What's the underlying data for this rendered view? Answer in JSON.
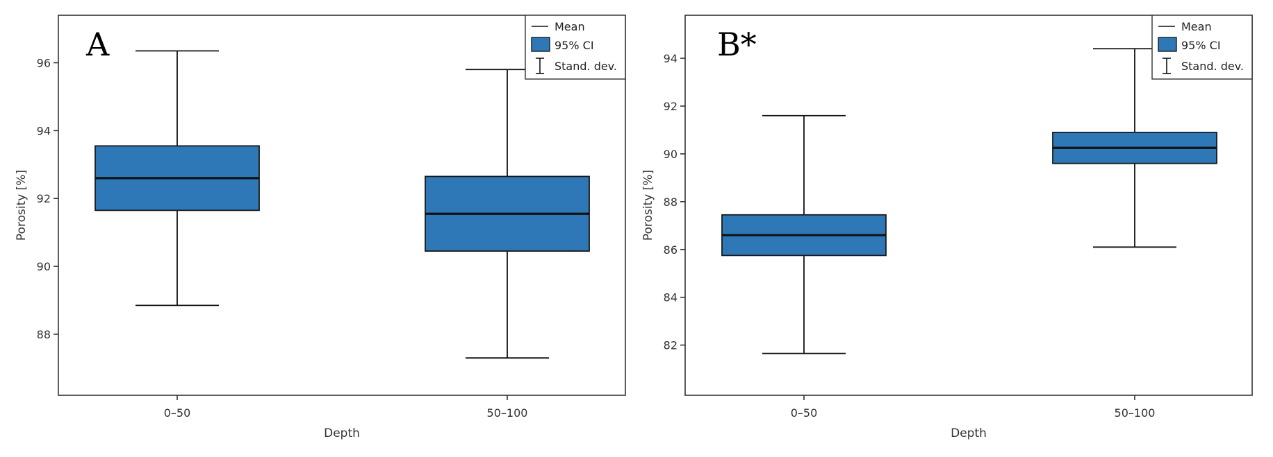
{
  "legend": {
    "mean_label": "Mean",
    "ci_label": "95% CI",
    "sd_label": "Stand. dev."
  },
  "colors": {
    "box_fill": "#2e78b8",
    "axis": "#333333"
  },
  "chart_data": [
    {
      "type": "box",
      "panel_label": "A",
      "xlabel": "Depth",
      "ylabel": "Porosity [%]",
      "categories": [
        "0–50",
        "50–100"
      ],
      "ylim": [
        86.2,
        97.4
      ],
      "yticks": [
        88,
        90,
        92,
        94,
        96
      ],
      "series": [
        {
          "category": "0–50",
          "mean": 92.6,
          "ci_low": 91.65,
          "ci_high": 93.55,
          "sd_low": 88.85,
          "sd_high": 96.35
        },
        {
          "category": "50–100",
          "mean": 91.55,
          "ci_low": 90.45,
          "ci_high": 92.65,
          "sd_low": 87.3,
          "sd_high": 95.8
        }
      ],
      "legend_position": "top-right"
    },
    {
      "type": "box",
      "panel_label": "B*",
      "xlabel": "Depth",
      "ylabel": "Porosity [%]",
      "categories": [
        "0–50",
        "50–100"
      ],
      "ylim": [
        79.9,
        95.8
      ],
      "yticks": [
        82,
        84,
        86,
        88,
        90,
        92,
        94
      ],
      "series": [
        {
          "category": "0–50",
          "mean": 86.6,
          "ci_low": 85.75,
          "ci_high": 87.45,
          "sd_low": 81.65,
          "sd_high": 91.6
        },
        {
          "category": "50–100",
          "mean": 90.25,
          "ci_low": 89.6,
          "ci_high": 90.9,
          "sd_low": 86.1,
          "sd_high": 94.4
        }
      ],
      "legend_position": "top-right"
    }
  ]
}
